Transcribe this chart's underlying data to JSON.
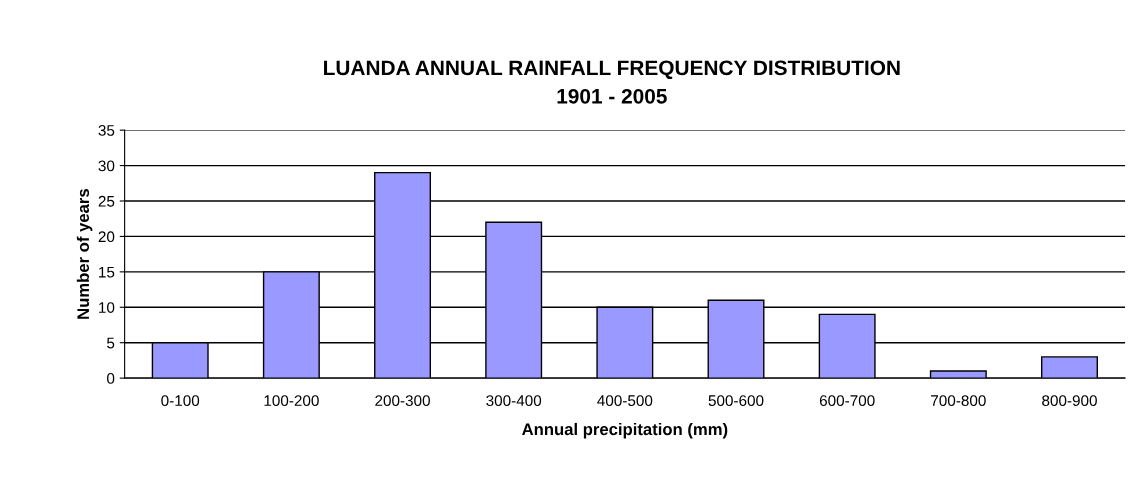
{
  "chart_data": {
    "type": "bar",
    "title": "LUANDA ANNUAL RAINFALL FREQUENCY DISTRIBUTION\n1901 - 2005",
    "xlabel": "Annual precipitation (mm)",
    "ylabel": "Number of years",
    "categories": [
      "0-100",
      "100-200",
      "200-300",
      "300-400",
      "400-500",
      "500-600",
      "600-700",
      "700-800",
      "800-900"
    ],
    "values": [
      5,
      15,
      29,
      22,
      10,
      11,
      9,
      1,
      3
    ],
    "color": "#9999ff",
    "ylim": [
      0,
      35
    ],
    "yticks": [
      0,
      5,
      10,
      15,
      20,
      25,
      30,
      35
    ],
    "grid": "y"
  }
}
